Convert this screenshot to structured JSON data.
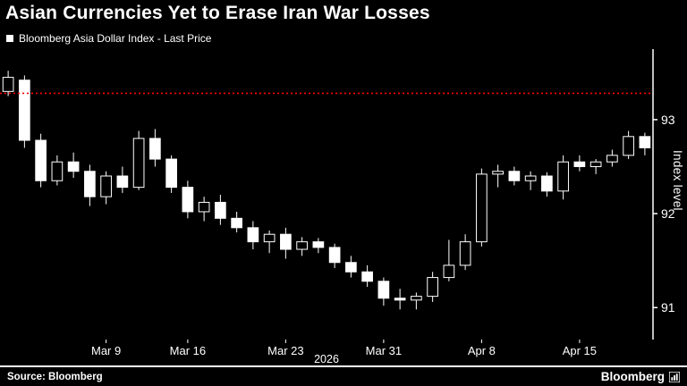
{
  "header": {
    "title": "Asian Currencies Yet to Erase Iran War Losses"
  },
  "legend": {
    "label": "Bloomberg Asia Dollar Index - Last Price"
  },
  "footer": {
    "source": "Source: Bloomberg",
    "brand": "Bloomberg"
  },
  "colors": {
    "background": "#000000",
    "foreground": "#ffffff",
    "reference_line": "#ff0000",
    "candle": "#ffffff"
  },
  "chart_data": {
    "type": "candlestick",
    "title": "Asian Currencies Yet to Erase Iran War Losses",
    "series_name": "Bloomberg Asia Dollar Index - Last Price",
    "ylabel": "Index level",
    "xlabel_year": "2026",
    "ylim": [
      90.66,
      93.75
    ],
    "yticks": [
      91,
      92,
      93
    ],
    "reference_line": 93.28,
    "grid": false,
    "legend_position": "top-left",
    "xticks": [
      {
        "label": "Mar 9",
        "index": 6
      },
      {
        "label": "Mar 16",
        "index": 11
      },
      {
        "label": "Mar 23",
        "index": 17
      },
      {
        "label": "Mar 31",
        "index": 23
      },
      {
        "label": "Apr 8",
        "index": 29
      },
      {
        "label": "Apr 15",
        "index": 35
      }
    ],
    "candles": [
      {
        "o": 93.3,
        "h": 93.52,
        "l": 93.25,
        "c": 93.45
      },
      {
        "o": 93.42,
        "h": 93.47,
        "l": 92.7,
        "c": 92.78
      },
      {
        "o": 92.78,
        "h": 92.85,
        "l": 92.28,
        "c": 92.35
      },
      {
        "o": 92.35,
        "h": 92.62,
        "l": 92.3,
        "c": 92.55
      },
      {
        "o": 92.55,
        "h": 92.65,
        "l": 92.38,
        "c": 92.45
      },
      {
        "o": 92.45,
        "h": 92.52,
        "l": 92.08,
        "c": 92.18
      },
      {
        "o": 92.18,
        "h": 92.45,
        "l": 92.1,
        "c": 92.4
      },
      {
        "o": 92.4,
        "h": 92.5,
        "l": 92.22,
        "c": 92.28
      },
      {
        "o": 92.28,
        "h": 92.88,
        "l": 92.25,
        "c": 92.8
      },
      {
        "o": 92.8,
        "h": 92.9,
        "l": 92.5,
        "c": 92.58
      },
      {
        "o": 92.58,
        "h": 92.62,
        "l": 92.22,
        "c": 92.28
      },
      {
        "o": 92.28,
        "h": 92.35,
        "l": 91.95,
        "c": 92.02
      },
      {
        "o": 92.02,
        "h": 92.18,
        "l": 91.92,
        "c": 92.12
      },
      {
        "o": 92.12,
        "h": 92.2,
        "l": 91.88,
        "c": 91.95
      },
      {
        "o": 91.95,
        "h": 92.02,
        "l": 91.8,
        "c": 91.85
      },
      {
        "o": 91.85,
        "h": 91.92,
        "l": 91.62,
        "c": 91.7
      },
      {
        "o": 91.7,
        "h": 91.82,
        "l": 91.58,
        "c": 91.78
      },
      {
        "o": 91.78,
        "h": 91.85,
        "l": 91.52,
        "c": 91.62
      },
      {
        "o": 91.62,
        "h": 91.75,
        "l": 91.55,
        "c": 91.7
      },
      {
        "o": 91.7,
        "h": 91.74,
        "l": 91.58,
        "c": 91.64
      },
      {
        "o": 91.64,
        "h": 91.68,
        "l": 91.42,
        "c": 91.48
      },
      {
        "o": 91.48,
        "h": 91.55,
        "l": 91.32,
        "c": 91.38
      },
      {
        "o": 91.38,
        "h": 91.45,
        "l": 91.22,
        "c": 91.28
      },
      {
        "o": 91.28,
        "h": 91.32,
        "l": 91.02,
        "c": 91.1
      },
      {
        "o": 91.1,
        "h": 91.2,
        "l": 90.98,
        "c": 91.08
      },
      {
        "o": 91.08,
        "h": 91.16,
        "l": 90.98,
        "c": 91.12
      },
      {
        "o": 91.12,
        "h": 91.38,
        "l": 91.06,
        "c": 91.32
      },
      {
        "o": 91.32,
        "h": 91.72,
        "l": 91.28,
        "c": 91.45
      },
      {
        "o": 91.45,
        "h": 91.78,
        "l": 91.4,
        "c": 91.7
      },
      {
        "o": 91.7,
        "h": 92.48,
        "l": 91.65,
        "c": 92.42
      },
      {
        "o": 92.42,
        "h": 92.52,
        "l": 92.28,
        "c": 92.45
      },
      {
        "o": 92.45,
        "h": 92.5,
        "l": 92.3,
        "c": 92.35
      },
      {
        "o": 92.35,
        "h": 92.45,
        "l": 92.25,
        "c": 92.4
      },
      {
        "o": 92.4,
        "h": 92.44,
        "l": 92.18,
        "c": 92.24
      },
      {
        "o": 92.24,
        "h": 92.62,
        "l": 92.15,
        "c": 92.55
      },
      {
        "o": 92.55,
        "h": 92.62,
        "l": 92.45,
        "c": 92.5
      },
      {
        "o": 92.5,
        "h": 92.58,
        "l": 92.42,
        "c": 92.55
      },
      {
        "o": 92.55,
        "h": 92.68,
        "l": 92.5,
        "c": 92.62
      },
      {
        "o": 92.62,
        "h": 92.88,
        "l": 92.58,
        "c": 92.82
      },
      {
        "o": 92.82,
        "h": 92.86,
        "l": 92.62,
        "c": 92.7
      }
    ]
  }
}
